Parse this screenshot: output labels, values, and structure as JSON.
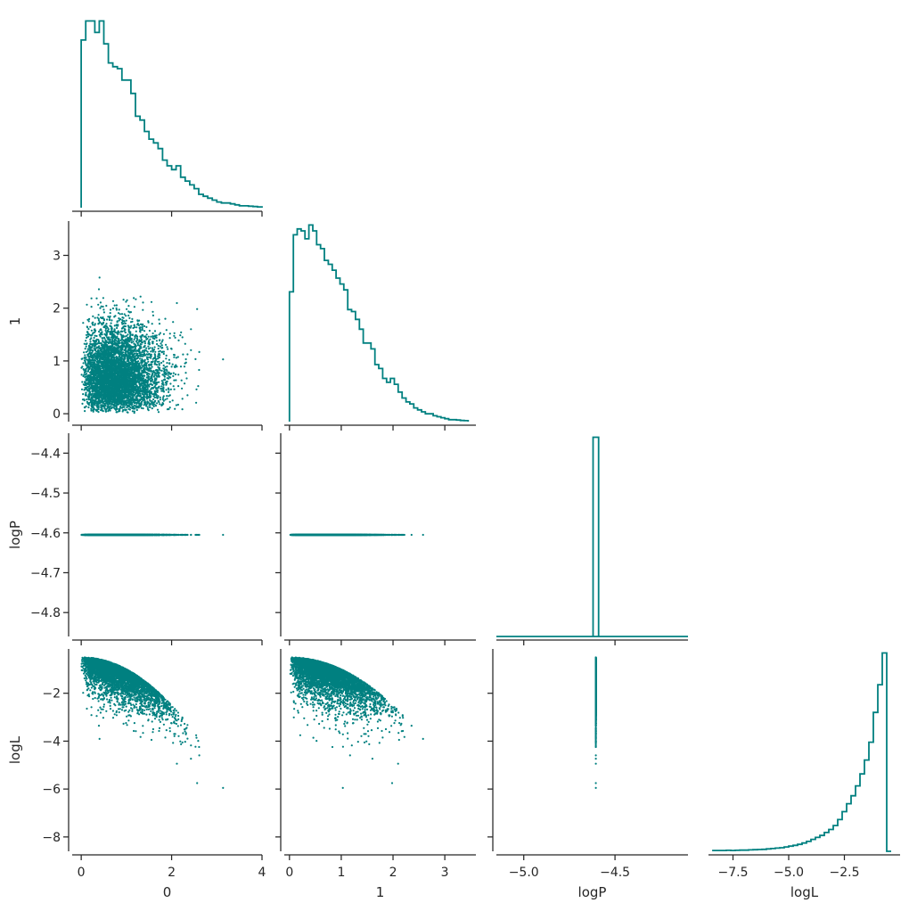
{
  "chart_data": {
    "type": "scatter",
    "kind": "corner-plot",
    "color": "#008080",
    "variables": [
      "0",
      "1",
      "logP",
      "logL"
    ],
    "axis_labels": {
      "x": [
        "0",
        "1",
        "logP",
        "logL"
      ],
      "y": [
        "",
        "1",
        "logP",
        "logL"
      ]
    },
    "ranges": {
      "0": [
        -0.2,
        4.0
      ],
      "1": [
        -0.1,
        3.6
      ],
      "logP": [
        -5.15,
        -4.1
      ],
      "logL": [
        -8.6,
        0.0
      ]
    },
    "scatter_y_ranges": {
      "1": [
        -0.15,
        3.65
      ],
      "logP": [
        -4.86,
        -4.35
      ],
      "logL": [
        -8.6,
        -0.15
      ]
    },
    "ticks": {
      "0": {
        "values": [
          0,
          2,
          4
        ],
        "labels": [
          "0",
          "2",
          "4"
        ]
      },
      "1": {
        "values": [
          0,
          1,
          2,
          3
        ],
        "labels": [
          "0",
          "1",
          "2",
          "3"
        ]
      },
      "logP_x": {
        "values": [
          -5.0,
          -4.5
        ],
        "labels": [
          "−5.0",
          "−4.5"
        ]
      },
      "logP_y": {
        "values": [
          -4.4,
          -4.5,
          -4.6,
          -4.7,
          -4.8
        ],
        "labels": [
          "−4.4",
          "−4.5",
          "−4.6",
          "−4.7",
          "−4.8"
        ]
      },
      "logL_x": {
        "values": [
          -7.5,
          -5.0,
          -2.5
        ],
        "labels": [
          "−7.5",
          "−5.0",
          "−2.5"
        ]
      },
      "logL_y": {
        "values": [
          -2,
          -4,
          -6,
          -8
        ],
        "labels": [
          "−2",
          "−4",
          "−6",
          "−8"
        ]
      }
    },
    "histograms": {
      "0": {
        "bin_start": 0.0,
        "bin_width": 0.1,
        "heights": [
          0.88,
          0.98,
          0.98,
          0.92,
          0.98,
          0.86,
          0.76,
          0.74,
          0.73,
          0.67,
          0.67,
          0.6,
          0.48,
          0.46,
          0.4,
          0.36,
          0.34,
          0.31,
          0.25,
          0.22,
          0.2,
          0.22,
          0.16,
          0.14,
          0.12,
          0.1,
          0.07,
          0.06,
          0.05,
          0.04,
          0.03,
          0.025,
          0.025,
          0.02,
          0.015,
          0.01,
          0.01,
          0.008,
          0.006,
          0.004
        ]
      },
      "1": {
        "bin_start": 0.0,
        "bin_width": 0.075,
        "heights": [
          0.66,
          0.95,
          0.98,
          0.97,
          0.93,
          1.0,
          0.97,
          0.9,
          0.88,
          0.82,
          0.8,
          0.77,
          0.73,
          0.7,
          0.67,
          0.57,
          0.56,
          0.52,
          0.47,
          0.4,
          0.4,
          0.37,
          0.29,
          0.27,
          0.22,
          0.2,
          0.22,
          0.19,
          0.15,
          0.12,
          0.1,
          0.09,
          0.07,
          0.06,
          0.05,
          0.04,
          0.04,
          0.03,
          0.025,
          0.02,
          0.015,
          0.01,
          0.01,
          0.008,
          0.006,
          0.005
        ]
      },
      "logP": {
        "bin_start": -4.62,
        "bin_width": 0.03,
        "heights": [
          1.0
        ],
        "baseline": [
          -5.15,
          -4.1
        ]
      },
      "logL": {
        "bin_start": -8.4,
        "bin_width": 0.2,
        "heights": [
          0.004,
          0.004,
          0.004,
          0.005,
          0.004,
          0.005,
          0.006,
          0.006,
          0.007,
          0.008,
          0.009,
          0.01,
          0.012,
          0.014,
          0.016,
          0.018,
          0.022,
          0.026,
          0.03,
          0.035,
          0.042,
          0.05,
          0.06,
          0.07,
          0.08,
          0.095,
          0.11,
          0.13,
          0.16,
          0.2,
          0.24,
          0.28,
          0.33,
          0.39,
          0.46,
          0.55,
          0.7,
          0.84,
          1.0,
          0.0
        ]
      }
    },
    "scatter": {
      "n_points": 5000,
      "seed": 7,
      "constant_logP": -4.605,
      "logL_relation": "logL = -0.5 - 0.5*(x0^2 + x1^2)"
    }
  }
}
